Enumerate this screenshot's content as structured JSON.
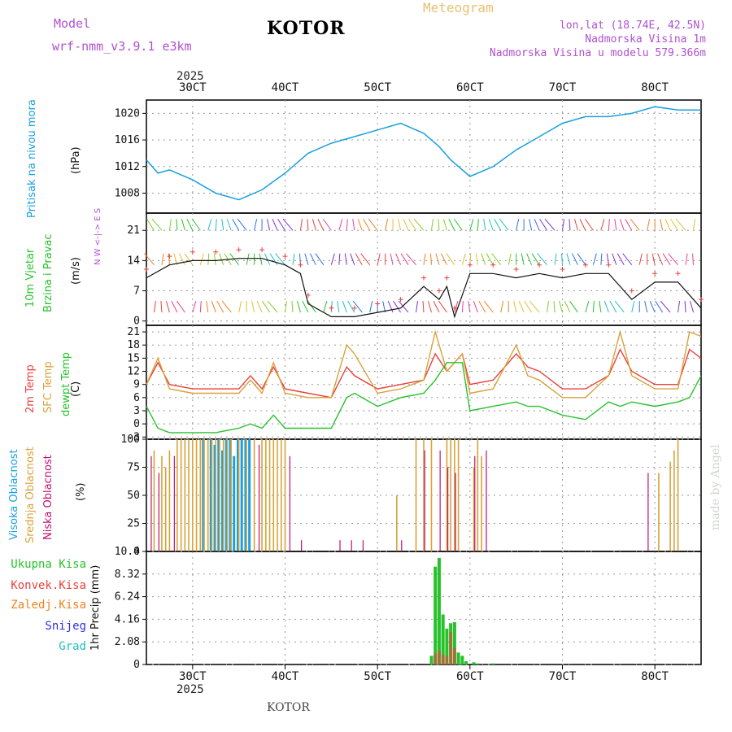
{
  "header": {
    "model_label": "Model",
    "model_name": "wrf-nmm_v3.9.1  e3km",
    "station": "KOTOR",
    "meteogram": "Meteogram",
    "lonlat": "lon,lat (18.74E, 42.5N)",
    "elev": "Nadmorska Visina 1m",
    "elev_model": "Nadmorska Visina u modelu 579.366m",
    "made_by": "made by Angel",
    "footer": "KOTOR",
    "year": "2025"
  },
  "time_axis": {
    "labels": [
      "30CT",
      "40CT",
      "50CT",
      "60CT",
      "70CT",
      "80CT"
    ],
    "start_hour": 0,
    "hours": 144
  },
  "panels": {
    "pressure": {
      "title": "Pritisak na nivou mora",
      "unit": "(hPa)",
      "ticks": [
        "1020",
        "1016",
        "1012",
        "1008"
      ]
    },
    "wind": {
      "title1": "10m Vjetar",
      "title2": "Brzina i Pravac",
      "unit": "(m/s)",
      "ticks": [
        "21",
        "14",
        "7",
        "0"
      ],
      "compass": "N  W <-|-> E  S"
    },
    "temp": {
      "t1": "2m Temp",
      "t2": "SFC Temp",
      "t3": "dewpt Temp",
      "unit": "(C)",
      "ticks": [
        "21",
        "18",
        "15",
        "12",
        "9",
        "6",
        "3",
        "0",
        "-3"
      ]
    },
    "cloud": {
      "c1": "Visoka Oblacnost",
      "c2": "Srednja Oblacnost",
      "c3": "Niska Oblacnost",
      "unit": "(%)",
      "ticks": [
        "100",
        "75",
        "50",
        "25",
        "0"
      ]
    },
    "precip": {
      "unit": "1hr Precip (mm)",
      "ticks": [
        "10.4",
        "8.32",
        "6.24",
        "4.16",
        "2.08",
        "0"
      ],
      "legend": [
        "Ukupna Kisa",
        "Konvek.Kisa",
        "Zaledj.Kisa",
        "Snijeg",
        "Grad"
      ]
    }
  },
  "colors": {
    "pressure": "#1aa0e0",
    "t2m": "#e8413c",
    "sfc": "#d9a23a",
    "dew": "#27c22b",
    "cloud_high": "#1aa0e0",
    "cloud_mid": "#d9a23a",
    "cloud_low": "#c01070",
    "rain": "#27c22b",
    "conv": "#e8413c",
    "frz": "#f08020",
    "snow": "#3030e0",
    "hail": "#20c0c0"
  },
  "chart_data": [
    {
      "type": "line",
      "title": "Pritisak na nivou mora",
      "ylabel": "(hPa)",
      "ylim": [
        1005,
        1022
      ],
      "x": [
        0,
        3,
        6,
        12,
        18,
        24,
        30,
        36,
        42,
        48,
        54,
        60,
        66,
        72,
        76,
        79,
        84,
        90,
        96,
        102,
        108,
        114,
        120,
        126,
        132,
        138,
        144
      ],
      "values": [
        1013,
        1011,
        1011.5,
        1010,
        1008,
        1007,
        1008.5,
        1011,
        1014,
        1015.5,
        1016.5,
        1017.5,
        1018.5,
        1017,
        1015,
        1013,
        1010.5,
        1012,
        1014.5,
        1016.5,
        1018.5,
        1019.5,
        1019.5,
        1020,
        1021,
        1020.5,
        1020.5
      ]
    },
    {
      "type": "line",
      "title": "10m Vjetar Brzina i Pravac",
      "ylabel": "(m/s)",
      "ylim": [
        -1,
        25
      ],
      "x": [
        0,
        6,
        12,
        18,
        24,
        30,
        36,
        40,
        42,
        48,
        54,
        60,
        66,
        72,
        76,
        78,
        80,
        84,
        90,
        96,
        102,
        108,
        114,
        120,
        126,
        132,
        138,
        144
      ],
      "values": [
        10,
        13,
        14,
        14,
        14.5,
        14.5,
        13,
        11,
        4,
        1,
        1,
        2,
        3,
        8,
        5,
        8,
        1,
        11,
        11,
        10,
        11,
        10,
        11,
        11,
        5,
        9,
        9,
        3
      ]
    },
    {
      "type": "line",
      "title": "2m Temp / SFC Temp / dewpt Temp",
      "ylabel": "(C)",
      "ylim": [
        -3.5,
        22.5
      ],
      "x": [
        0,
        3,
        6,
        12,
        18,
        24,
        27,
        30,
        33,
        36,
        42,
        48,
        52,
        54,
        60,
        66,
        72,
        75,
        78,
        82,
        84,
        90,
        96,
        99,
        102,
        108,
        114,
        120,
        123,
        126,
        132,
        138,
        141,
        144
      ],
      "series": [
        {
          "name": "2m Temp",
          "values": [
            9,
            14,
            9,
            8,
            8,
            8,
            11,
            8,
            13,
            8,
            7,
            6,
            13,
            11,
            8,
            9,
            10,
            16,
            12,
            16,
            9,
            10,
            16,
            13,
            12,
            8,
            8,
            11,
            17,
            12,
            9,
            9,
            17,
            15
          ]
        },
        {
          "name": "SFC Temp",
          "values": [
            9,
            15,
            8,
            7,
            7,
            7,
            10,
            7,
            14,
            7,
            6,
            6,
            18,
            16,
            7,
            8,
            10,
            21,
            12,
            16,
            7,
            8,
            18,
            11,
            10,
            6,
            6,
            11,
            21,
            11,
            8,
            8,
            21,
            20
          ]
        },
        {
          "name": "dewpt Temp",
          "values": [
            4,
            -1,
            -2,
            -2,
            -2,
            -1,
            0,
            -1,
            2,
            -1,
            -1,
            -1,
            6,
            7,
            4,
            6,
            7,
            10,
            14,
            14,
            3,
            4,
            5,
            4,
            4,
            2,
            1,
            5,
            4,
            5,
            4,
            5,
            6,
            11
          ]
        }
      ]
    },
    {
      "type": "bar",
      "title": "Oblacnost",
      "ylabel": "(%)",
      "ylim": [
        0,
        100
      ],
      "series": [
        {
          "name": "Visoka Oblacnost",
          "x": [
            15,
            17,
            18,
            19,
            20,
            21,
            22,
            23,
            24,
            25,
            26,
            27
          ],
          "values": [
            100,
            100,
            95,
            100,
            90,
            100,
            100,
            85,
            100,
            100,
            100,
            100
          ]
        },
        {
          "name": "Srednja Oblacnost",
          "x": [
            2,
            4,
            5,
            6,
            8,
            9,
            10,
            11,
            12,
            13,
            14,
            15,
            16,
            17,
            18,
            19,
            20,
            21,
            22,
            24,
            26,
            28,
            30,
            31,
            32,
            33,
            34,
            35,
            36,
            65,
            70,
            72,
            74,
            78,
            79,
            80,
            81,
            85,
            86,
            87,
            133,
            136,
            137,
            138
          ],
          "values": [
            90,
            85,
            75,
            90,
            100,
            100,
            100,
            100,
            100,
            100,
            100,
            100,
            100,
            100,
            100,
            100,
            100,
            100,
            100,
            100,
            100,
            100,
            100,
            100,
            100,
            100,
            100,
            100,
            100,
            50,
            100,
            100,
            100,
            100,
            100,
            100,
            100,
            75,
            100,
            85,
            70,
            80,
            90,
            100
          ]
        },
        {
          "name": "Niska Oblacnost",
          "x": [
            1,
            3,
            7,
            29,
            37,
            40,
            50,
            53,
            56,
            66,
            72,
            76,
            78,
            80,
            85,
            88,
            130
          ],
          "values": [
            85,
            70,
            85,
            95,
            85,
            10,
            10,
            10,
            10,
            10,
            90,
            90,
            75,
            70,
            85,
            90,
            70
          ]
        }
      ]
    },
    {
      "type": "bar",
      "title": "1hr Precip",
      "ylabel": "1hr Precip (mm)",
      "ylim": [
        0,
        10.4
      ],
      "series": [
        {
          "name": "Ukupna Kisa",
          "x": [
            74,
            75,
            76,
            77,
            78,
            79,
            80,
            81,
            82,
            83,
            85,
            86,
            90
          ],
          "values": [
            0.8,
            9.0,
            9.8,
            4.6,
            3.3,
            3.8,
            3.9,
            1.1,
            0.8,
            0.3,
            0.2,
            0.1,
            0.1
          ]
        },
        {
          "name": "Konvek.Kisa",
          "x": [
            75,
            76,
            77,
            78,
            79,
            80
          ],
          "values": [
            1.0,
            1.3,
            0.9,
            0.8,
            3.0,
            1.5
          ]
        }
      ]
    }
  ]
}
